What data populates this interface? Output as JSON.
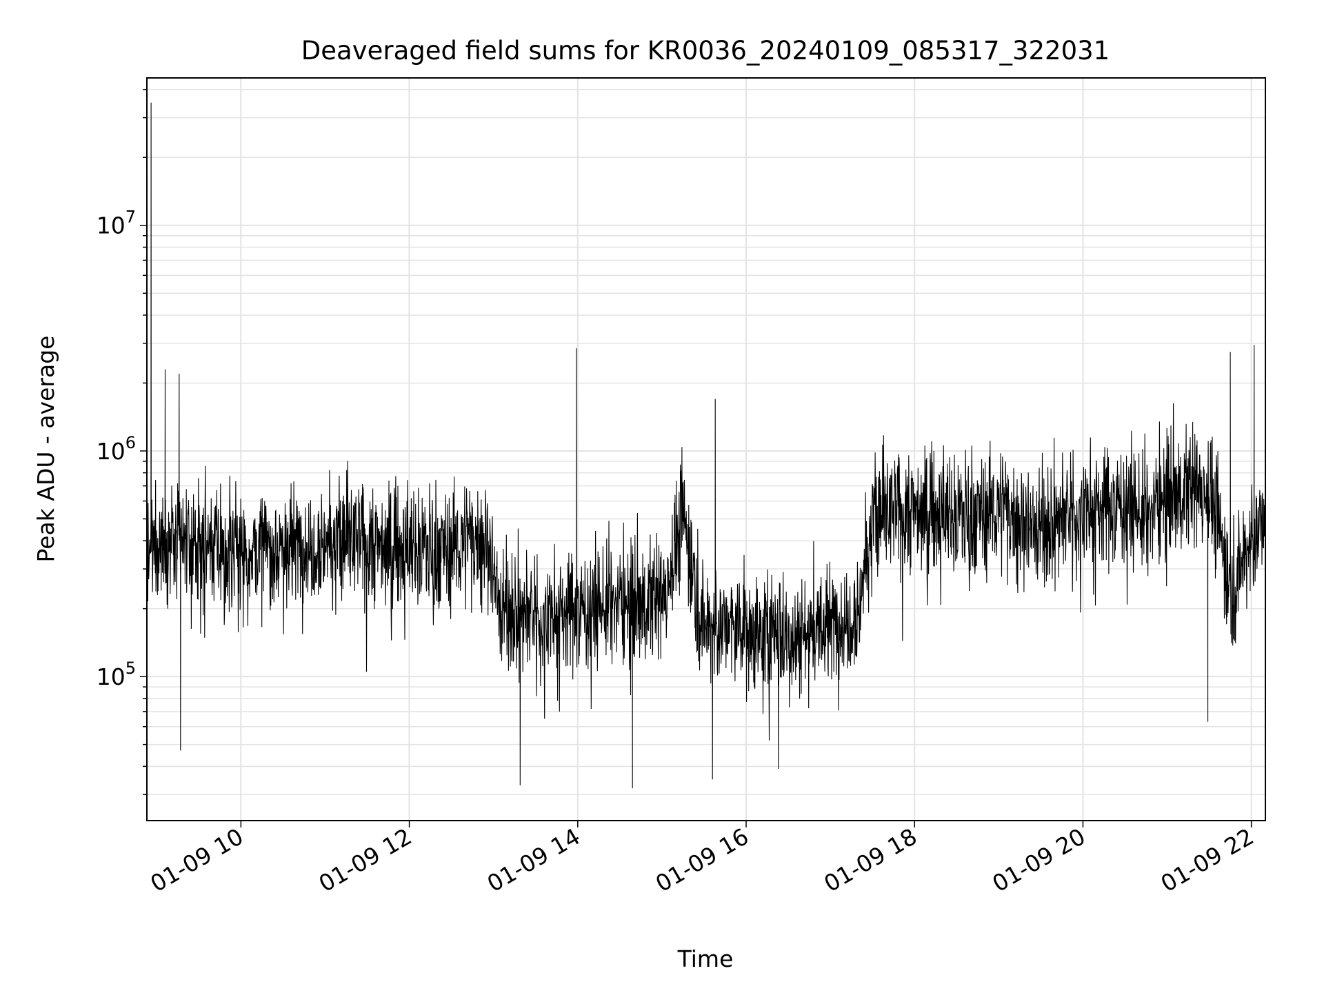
{
  "chart_data": {
    "type": "line",
    "title": "Deaveraged field sums for KR0036_20240109_085317_322031",
    "xlabel": "Time",
    "ylabel": "Peak ADU - average",
    "yscale": "log",
    "xlim": [
      "01-09 08:53",
      "01-09 22:10"
    ],
    "ylim": [
      23000,
      45000000
    ],
    "x_ticks": [
      "01-09 10",
      "01-09 12",
      "01-09 14",
      "01-09 16",
      "01-09 18",
      "01-09 20",
      "01-09 22"
    ],
    "y_ticks": [
      {
        "base": "10",
        "exp": "5",
        "value": 100000
      },
      {
        "base": "10",
        "exp": "6",
        "value": 1000000
      },
      {
        "base": "10",
        "exp": "7",
        "value": 10000000
      }
    ],
    "grid": true,
    "series": [
      {
        "color": "#000000",
        "x": [
          "01-09 08:53",
          "01-09 09:00",
          "01-09 09:30",
          "01-09 10:00",
          "01-09 10:30",
          "01-09 11:00",
          "01-09 11:30",
          "01-09 12:00",
          "01-09 12:30",
          "01-09 12:55",
          "01-09 13:05",
          "01-09 13:30",
          "01-09 14:00",
          "01-09 14:30",
          "01-09 15:00",
          "01-09 15:15",
          "01-09 15:30",
          "01-09 16:00",
          "01-09 16:30",
          "01-09 17:00",
          "01-09 17:20",
          "01-09 17:30",
          "01-09 18:00",
          "01-09 18:30",
          "01-09 19:00",
          "01-09 19:30",
          "01-09 20:00",
          "01-09 20:30",
          "01-09 20:45",
          "01-09 21:00",
          "01-09 21:30",
          "01-09 21:45",
          "01-09 22:00",
          "01-09 22:10"
        ],
        "y": [
          300000,
          400000,
          380000,
          360000,
          380000,
          400000,
          390000,
          370000,
          380000,
          420000,
          200000,
          180000,
          200000,
          210000,
          220000,
          500000,
          170000,
          160000,
          150000,
          170000,
          200000,
          500000,
          550000,
          520000,
          560000,
          450000,
          550000,
          600000,
          500000,
          650000,
          700000,
          250000,
          400000,
          500000
        ]
      }
    ],
    "spikes": [
      {
        "x": "01-09 08:56",
        "y": 35000000
      },
      {
        "x": "01-09 09:06",
        "y": 2300000
      },
      {
        "x": "01-09 09:16",
        "y": 2200000
      },
      {
        "x": "01-09 13:59",
        "y": 2850000
      },
      {
        "x": "01-09 15:38",
        "y": 1700000
      },
      {
        "x": "01-09 21:45",
        "y": 2750000
      },
      {
        "x": "01-09 22:02",
        "y": 2950000
      }
    ],
    "dips": [
      {
        "x": "01-09 09:17",
        "y": 47000
      },
      {
        "x": "01-09 13:19",
        "y": 33000
      },
      {
        "x": "01-09 14:39",
        "y": 32000
      },
      {
        "x": "01-09 15:36",
        "y": 35000
      },
      {
        "x": "01-09 16:23",
        "y": 39000
      },
      {
        "x": "01-09 21:29",
        "y": 63000
      }
    ]
  }
}
